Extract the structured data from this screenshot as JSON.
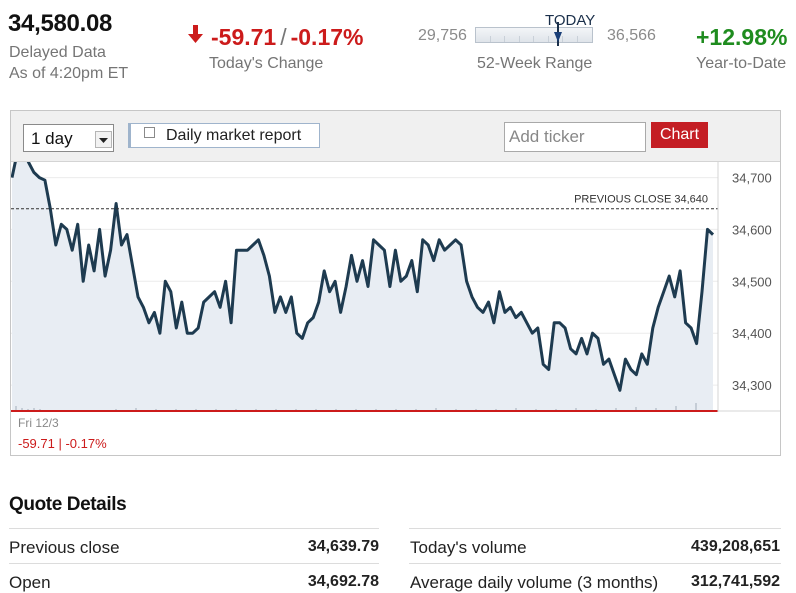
{
  "quote": {
    "price": "34,580.08",
    "delayed": "Delayed Data",
    "as_of": "As of 4:20pm ET",
    "change_points": "-59.71",
    "change_separator": "/",
    "change_percent": "-0.17%",
    "change_label": "Today's Change",
    "range_low": "29,756",
    "range_high": "36,566",
    "range_today": "TODAY",
    "range_label": "52-Week Range",
    "range_position": 0.68,
    "ytd": "+12.98%",
    "ytd_label": "Year-to-Date",
    "colors": {
      "down": "#cc1b1b",
      "up": "#1f8c1f",
      "line": "#1e3b50",
      "fill": "#e8edf3",
      "accent_button": "#c41e24"
    }
  },
  "chart_controls": {
    "period": "1 day",
    "report_label": "Daily market report",
    "ticker_placeholder": "Add ticker",
    "chart_button": "Chart"
  },
  "chart_data": {
    "type": "area",
    "ylim": [
      34250,
      34730
    ],
    "y_ticks": [
      34300,
      34400,
      34500,
      34600,
      34700
    ],
    "y_tick_labels": [
      "34,300",
      "34,400",
      "34,500",
      "34,600",
      "34,700"
    ],
    "previous_close": 34640,
    "previous_close_label": "PREVIOUS CLOSE 34,640",
    "date_label": "Fri 12/3",
    "change_text": "-59.71 | -0.17%",
    "values": [
      34700,
      34750,
      34760,
      34730,
      34710,
      34700,
      34695,
      34640,
      34570,
      34610,
      34600,
      34560,
      34610,
      34500,
      34570,
      34520,
      34600,
      34510,
      34560,
      34650,
      34570,
      34590,
      34530,
      34470,
      34450,
      34420,
      34440,
      34400,
      34500,
      34480,
      34410,
      34460,
      34400,
      34400,
      34410,
      34460,
      34470,
      34480,
      34450,
      34500,
      34420,
      34560,
      34560,
      34560,
      34570,
      34580,
      34550,
      34510,
      34440,
      34470,
      34440,
      34470,
      34400,
      34390,
      34420,
      34430,
      34460,
      34520,
      34480,
      34500,
      34440,
      34490,
      34550,
      34500,
      34540,
      34490,
      34580,
      34570,
      34560,
      34490,
      34560,
      34500,
      34510,
      34540,
      34480,
      34580,
      34570,
      34540,
      34580,
      34560,
      34570,
      34580,
      34570,
      34500,
      34470,
      34450,
      34440,
      34460,
      34420,
      34480,
      34440,
      34450,
      34430,
      34440,
      34420,
      34400,
      34410,
      34340,
      34330,
      34420,
      34420,
      34410,
      34370,
      34360,
      34390,
      34360,
      34400,
      34390,
      34340,
      34350,
      34320,
      34290,
      34350,
      34330,
      34320,
      34360,
      34340,
      34410,
      34450,
      34480,
      34510,
      34470,
      34520,
      34420,
      34410,
      34380,
      34480,
      34600,
      34590
    ]
  },
  "quote_details": {
    "title": "Quote Details",
    "left": [
      {
        "label": "Previous close",
        "value": "34,639.79"
      },
      {
        "label": "Open",
        "value": "34,692.78"
      }
    ],
    "right": [
      {
        "label": "Today's volume",
        "value": "439,208,651"
      },
      {
        "label": "Average daily volume (3 months)",
        "value": "312,741,592"
      }
    ]
  }
}
